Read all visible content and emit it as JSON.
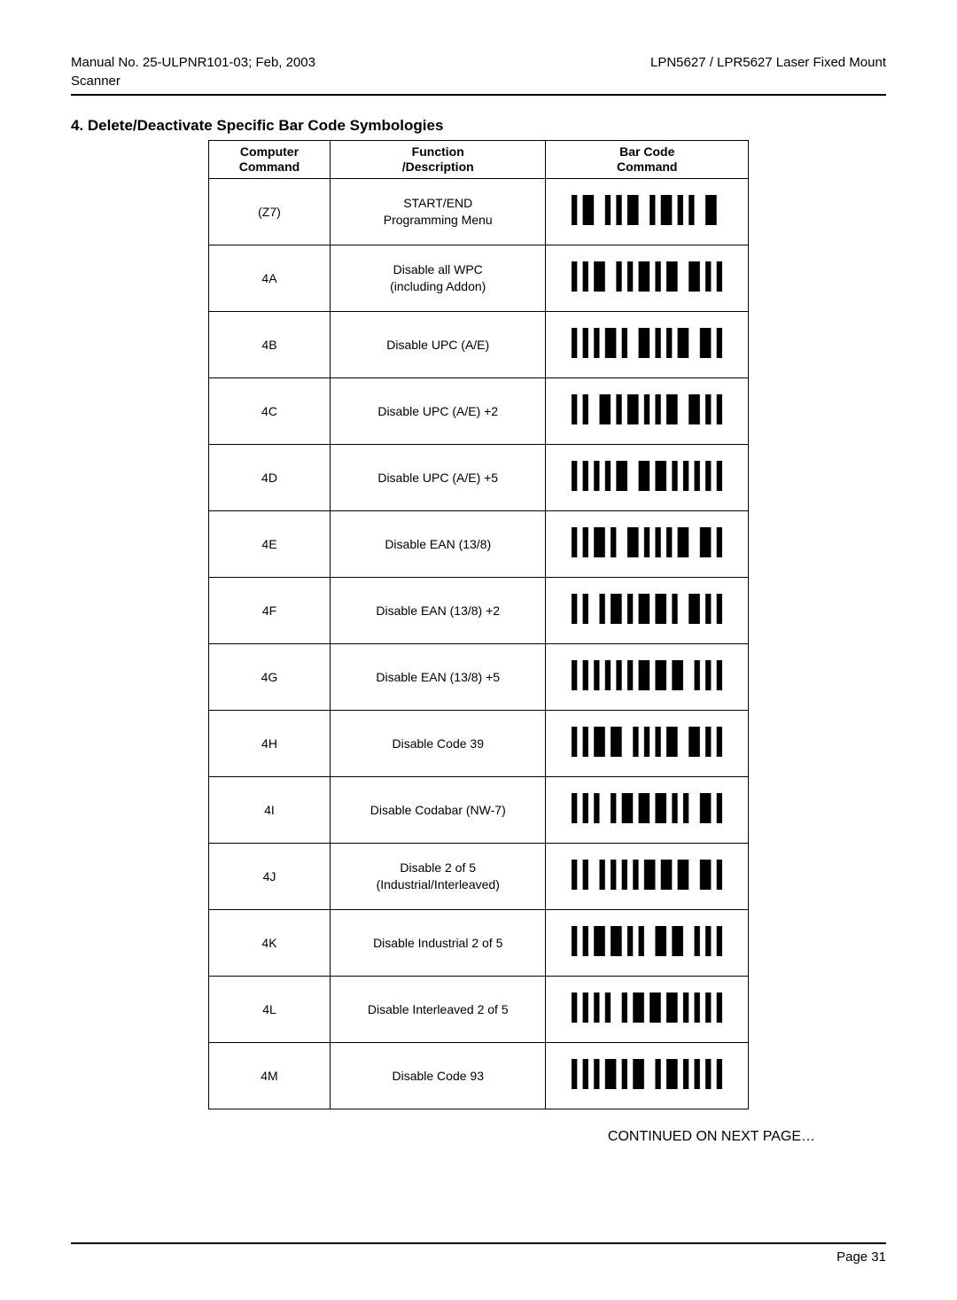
{
  "header": {
    "left_line1": "Manual No. 25-ULPNR101-03; Feb, 2003",
    "left_line2": "Scanner",
    "right_line1": "LPN5627 / LPR5627 Laser Fixed Mount"
  },
  "section_title": "4. Delete/Deactivate Specific Bar Code Symbologies",
  "table": {
    "columns": {
      "col1_line1": "Computer",
      "col1_line2": "Command",
      "col2_line1": "Function",
      "col2_line2": "/Description",
      "col3_line1": "Bar Code",
      "col3_line2": "Command"
    },
    "rows": [
      {
        "cmd": "(Z7)",
        "desc1": "START/END",
        "desc2": "Programming Menu",
        "bars": "101100101011001011010100110"
      },
      {
        "cmd": "4A",
        "desc1": "Disable all WPC",
        "desc2": "(including Addon)",
        "bars": "101011001010110101100110101"
      },
      {
        "cmd": "4B",
        "desc1": "Disable UPC (A/E)",
        "desc2": "",
        "bars": "101010110100110101011001101"
      },
      {
        "cmd": "4C",
        "desc1": "Disable UPC (A/E) +2",
        "desc2": "",
        "bars": "101001101011010101100110101"
      },
      {
        "cmd": "4D",
        "desc1": "Disable UPC (A/E) +5",
        "desc2": "",
        "bars": "101010101100110110101010101"
      },
      {
        "cmd": "4E",
        "desc1": "Disable EAN (13/8)",
        "desc2": "",
        "bars": "101011010011010101011001101"
      },
      {
        "cmd": "4F",
        "desc1": "Disable EAN (13/8) +2",
        "desc2": "",
        "bars": "101001011010110110100110101"
      },
      {
        "cmd": "4G",
        "desc1": "Disable EAN (13/8) +5",
        "desc2": "",
        "bars": "101010101010110110110010101"
      },
      {
        "cmd": "4H",
        "desc1": "Disable Code 39",
        "desc2": "",
        "bars": "101011011001010101100110101"
      },
      {
        "cmd": "4I",
        "desc1": "Disable Codabar (NW-7)",
        "desc2": "",
        "bars": "101010010110110110101001101"
      },
      {
        "cmd": "4J",
        "desc1": "Disable 2 of 5",
        "desc2": "(Industrial/Interleaved)",
        "bars": "101001010101011011011001101"
      },
      {
        "cmd": "4K",
        "desc1": "Disable Industrial 2 of 5",
        "desc2": "",
        "bars": "101011011010100110110010101"
      },
      {
        "cmd": "4L",
        "desc1": "Disable Interleaved 2 of 5",
        "desc2": "",
        "bars": "101010100101101101101010101"
      },
      {
        "cmd": "4M",
        "desc1": "Disable Code 93",
        "desc2": "",
        "bars": "101010110101100101101010101"
      }
    ]
  },
  "continued_text": "CONTINUED ON NEXT PAGE…",
  "page_label": "Page  31",
  "style": {
    "barcode_color": "#000000",
    "barcode_bg": "#ffffff",
    "text_color": "#000000",
    "rule_color": "#000000"
  }
}
